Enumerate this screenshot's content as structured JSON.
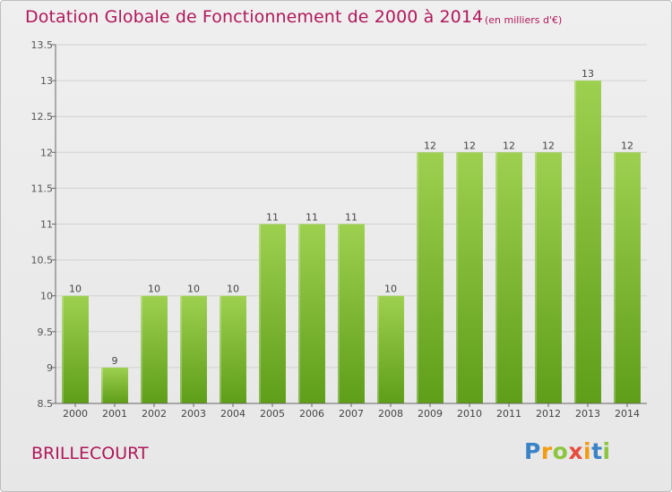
{
  "header": {
    "title": "Dotation Globale de Fonctionnement de 2000 à 2014",
    "subtitle": "(en milliers d'€)"
  },
  "footer": {
    "commune": "BRILLECOURT",
    "logo": "Proxiti"
  },
  "colors": {
    "title": "#b0185a",
    "bar_top": "#9ed050",
    "bar_bottom": "#5e9e18",
    "grid": "#d2d2d2"
  },
  "chart_data": {
    "type": "bar",
    "title": "Dotation Globale de Fonctionnement de 2000 à 2014",
    "subtitle": "(en milliers d'€)",
    "xlabel": "",
    "ylabel": "",
    "categories": [
      "2000",
      "2001",
      "2002",
      "2003",
      "2004",
      "2005",
      "2006",
      "2007",
      "2008",
      "2009",
      "2010",
      "2011",
      "2012",
      "2013",
      "2014"
    ],
    "values": [
      10,
      9,
      10,
      10,
      10,
      11,
      11,
      11,
      10,
      12,
      12,
      12,
      12,
      13,
      12
    ],
    "data_labels": [
      "10",
      "9",
      "10",
      "10",
      "10",
      "11",
      "11",
      "11",
      "10",
      "12",
      "12",
      "12",
      "12",
      "13",
      "12"
    ],
    "ylim": [
      8.5,
      13.5
    ],
    "yticks": [
      8.5,
      9,
      9.5,
      10,
      10.5,
      11,
      11.5,
      12,
      12.5,
      13,
      13.5
    ],
    "ytick_labels": [
      "8.5",
      "9",
      "9.5",
      "10",
      "10.5",
      "11",
      "11.5",
      "12",
      "12.5",
      "13",
      "13.5"
    ],
    "grid": true,
    "legend": "none"
  }
}
